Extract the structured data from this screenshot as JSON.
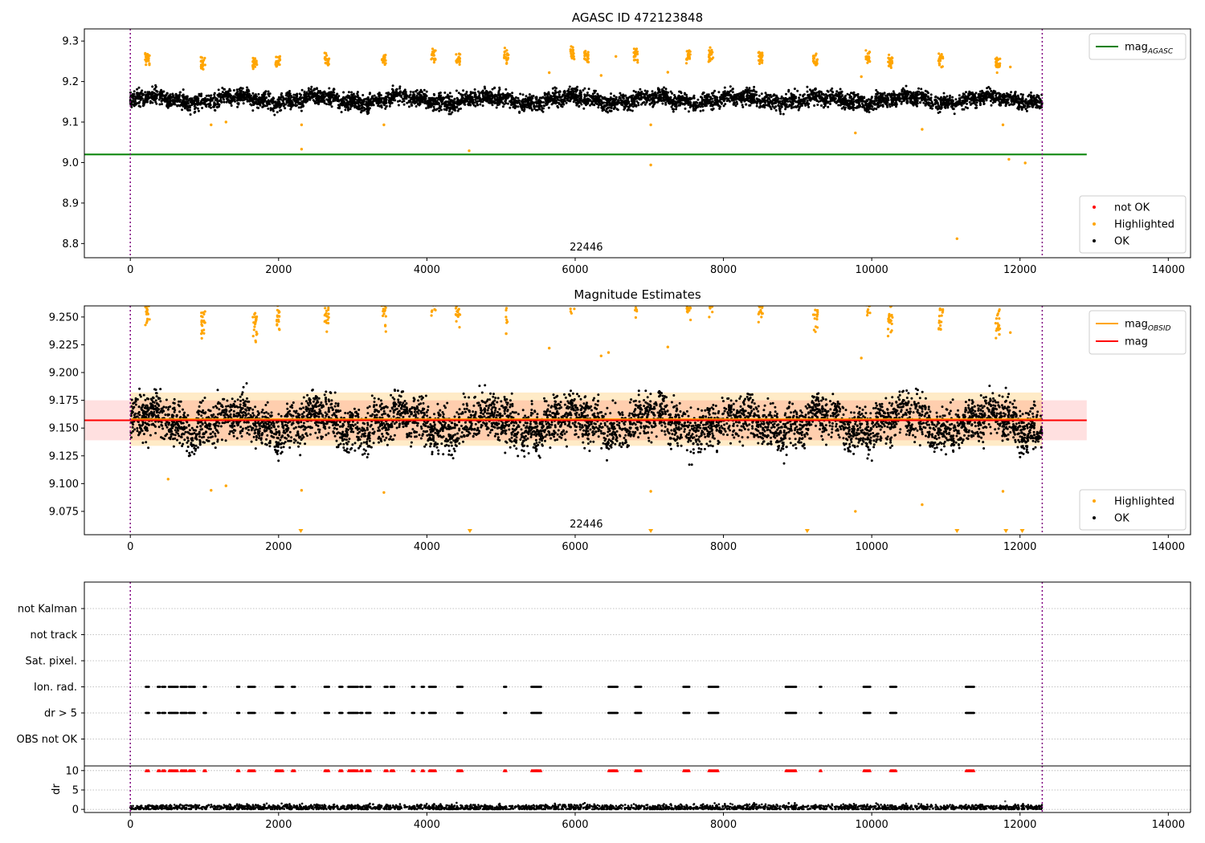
{
  "chart_data": [
    {
      "id": "agasc",
      "type": "scatter",
      "title": "AGASC ID 472123848",
      "xlim": [
        -620,
        14300
      ],
      "ylim": [
        8.765,
        9.33
      ],
      "xticks": [
        0,
        2000,
        4000,
        6000,
        8000,
        10000,
        12000,
        14000
      ],
      "yticks": [
        8.8,
        8.9,
        9.0,
        9.1,
        9.2,
        9.3
      ],
      "ytick_labels": [
        "8.8",
        "8.9",
        "9.0",
        "9.1",
        "9.2",
        "9.3"
      ],
      "annotation": {
        "text": "22446",
        "x": 6150
      },
      "vlines": [
        0,
        12300
      ],
      "hlines": [
        {
          "y": 9.02,
          "x_range": [
            -620,
            12900
          ],
          "color": "#008000",
          "name": "mag",
          "sub": "AGASC"
        }
      ],
      "legend_lines": [
        {
          "label": "mag",
          "sub": "AGASC",
          "color": "#008000"
        }
      ],
      "legend_points": [
        {
          "label": "not OK",
          "color": "#ff0000"
        },
        {
          "label": "Highlighted",
          "color": "#ffa500"
        },
        {
          "label": "OK",
          "color": "#000000"
        }
      ],
      "ok_band": {
        "x_range": [
          0,
          12300
        ],
        "center": 9.155,
        "spread": 0.018,
        "n": 5200
      },
      "highlighted_clusters": [
        [
          230,
          9.255
        ],
        [
          980,
          9.245
        ],
        [
          1680,
          9.245
        ],
        [
          1990,
          9.25
        ],
        [
          2650,
          9.255
        ],
        [
          3420,
          9.255
        ],
        [
          4090,
          9.265
        ],
        [
          4420,
          9.255
        ],
        [
          5070,
          9.265
        ],
        [
          5960,
          9.268
        ],
        [
          6150,
          9.262
        ],
        [
          6820,
          9.265
        ],
        [
          7530,
          9.262
        ],
        [
          7830,
          9.268
        ],
        [
          8500,
          9.26
        ],
        [
          9240,
          9.255
        ],
        [
          9950,
          9.262
        ],
        [
          10250,
          9.25
        ],
        [
          10930,
          9.255
        ],
        [
          11700,
          9.245
        ]
      ],
      "highlighted_points": [
        [
          1090,
          9.093
        ],
        [
          1290,
          9.1
        ],
        [
          2310,
          9.093
        ],
        [
          2310,
          9.033
        ],
        [
          3420,
          9.093
        ],
        [
          4570,
          9.029
        ],
        [
          5650,
          9.222
        ],
        [
          6350,
          9.215
        ],
        [
          6550,
          9.262
        ],
        [
          7020,
          9.093
        ],
        [
          7020,
          8.994
        ],
        [
          7250,
          9.223
        ],
        [
          9780,
          9.073
        ],
        [
          9860,
          9.212
        ],
        [
          10680,
          9.082
        ],
        [
          11150,
          8.812
        ],
        [
          11770,
          9.093
        ],
        [
          11850,
          9.008
        ],
        [
          12070,
          8.999
        ],
        [
          11870,
          9.236
        ]
      ]
    },
    {
      "id": "mag_estimates",
      "type": "scatter",
      "title": "Magnitude Estimates",
      "xlim": [
        -620,
        14300
      ],
      "ylim": [
        9.054,
        9.26
      ],
      "xticks": [
        0,
        2000,
        4000,
        6000,
        8000,
        10000,
        12000,
        14000
      ],
      "yticks": [
        9.075,
        9.1,
        9.125,
        9.15,
        9.175,
        9.2,
        9.225,
        9.25
      ],
      "ytick_labels": [
        "9.075",
        "9.100",
        "9.125",
        "9.150",
        "9.175",
        "9.200",
        "9.225",
        "9.250"
      ],
      "annotation": {
        "text": "22446",
        "x": 6150
      },
      "vlines": [
        0,
        12300
      ],
      "bands": [
        {
          "x_range": [
            0,
            12300
          ],
          "y_range": [
            9.134,
            9.182
          ],
          "color": "#ffa500",
          "opacity": 0.22
        },
        {
          "x_range": [
            -620,
            12900
          ],
          "y_range": [
            9.139,
            9.175
          ],
          "color": "#ff0000",
          "opacity": 0.12
        }
      ],
      "hlines": [
        {
          "y": 9.158,
          "x_range": [
            0,
            12300
          ],
          "color": "#ffa500",
          "name": "mag",
          "sub": "OBSID"
        },
        {
          "y": 9.157,
          "x_range": [
            -620,
            12900
          ],
          "color": "#ff0000",
          "name": "mag",
          "sub": ""
        }
      ],
      "legend_lines": [
        {
          "label": "mag",
          "sub": "OBSID",
          "color": "#ffa500"
        },
        {
          "label": "mag",
          "sub": "",
          "color": "#ff0000"
        }
      ],
      "legend_points": [
        {
          "label": "Highlighted",
          "color": "#ffa500"
        },
        {
          "label": "OK",
          "color": "#000000"
        }
      ],
      "ok_band": {
        "x_range": [
          0,
          12300
        ],
        "center": 9.155,
        "spread": 0.018,
        "n": 5200
      },
      "highlighted_clusters": [
        [
          230,
          9.255
        ],
        [
          980,
          9.245
        ],
        [
          1680,
          9.245
        ],
        [
          1990,
          9.25
        ],
        [
          2650,
          9.255
        ],
        [
          3420,
          9.255
        ],
        [
          4090,
          9.265
        ],
        [
          4420,
          9.255
        ],
        [
          5070,
          9.265
        ],
        [
          5960,
          9.268
        ],
        [
          6820,
          9.265
        ],
        [
          7530,
          9.262
        ],
        [
          7830,
          9.268
        ],
        [
          8500,
          9.26
        ],
        [
          9240,
          9.255
        ],
        [
          9950,
          9.262
        ],
        [
          10250,
          9.25
        ],
        [
          10930,
          9.255
        ],
        [
          11700,
          9.245
        ]
      ],
      "highlighted_points": [
        [
          510,
          9.104
        ],
        [
          1090,
          9.094
        ],
        [
          1290,
          9.098
        ],
        [
          2310,
          9.094
        ],
        [
          3420,
          9.092
        ],
        [
          5070,
          9.235
        ],
        [
          5650,
          9.222
        ],
        [
          6350,
          9.215
        ],
        [
          6450,
          9.218
        ],
        [
          7020,
          9.093
        ],
        [
          7250,
          9.223
        ],
        [
          9780,
          9.075
        ],
        [
          9860,
          9.213
        ],
        [
          10680,
          9.081
        ],
        [
          11770,
          9.093
        ],
        [
          11870,
          9.236
        ]
      ],
      "offscale_low_markers": [
        2300,
        4580,
        7020,
        9130,
        11150,
        11810,
        12030
      ]
    },
    {
      "id": "flags",
      "type": "scatter",
      "xlim": [
        -620,
        14300
      ],
      "categories": [
        "not Kalman",
        "not track",
        "Sat. pixel.",
        "Ion. rad.",
        "dr > 5",
        "OBS not OK"
      ],
      "vlines": [
        0,
        12300
      ],
      "flag_spans": [
        [
          210,
          250
        ],
        [
          370,
          400
        ],
        [
          430,
          470
        ],
        [
          520,
          640
        ],
        [
          680,
          760
        ],
        [
          790,
          870
        ],
        [
          990,
          1020
        ],
        [
          1440,
          1470
        ],
        [
          1590,
          1680
        ],
        [
          1960,
          2060
        ],
        [
          2180,
          2220
        ],
        [
          2620,
          2680
        ],
        [
          2820,
          2860
        ],
        [
          2940,
          3070
        ],
        [
          3100,
          3130
        ],
        [
          3180,
          3240
        ],
        [
          3430,
          3470
        ],
        [
          3510,
          3560
        ],
        [
          3800,
          3830
        ],
        [
          3930,
          3960
        ],
        [
          4030,
          4120
        ],
        [
          4410,
          4480
        ],
        [
          5040,
          5070
        ],
        [
          5410,
          5540
        ],
        [
          6450,
          6570
        ],
        [
          6810,
          6890
        ],
        [
          7460,
          7540
        ],
        [
          7800,
          7930
        ],
        [
          8840,
          8980
        ],
        [
          9300,
          9320
        ],
        [
          9890,
          9980
        ],
        [
          10250,
          10330
        ],
        [
          11270,
          11380
        ]
      ]
    },
    {
      "id": "dr",
      "type": "scatter",
      "ylabel": "dr",
      "xlim": [
        -620,
        14300
      ],
      "ylim": [
        -0.8,
        11.2
      ],
      "xticks": [
        0,
        2000,
        4000,
        6000,
        8000,
        10000,
        12000,
        14000
      ],
      "yticks": [
        0,
        5,
        10
      ],
      "ytick_labels": [
        "0",
        "5",
        "10"
      ],
      "vlines": [
        0,
        12300
      ],
      "dr_band": {
        "x_range": [
          0,
          12300
        ],
        "center": 0.5,
        "spread": 0.4,
        "n": 2500
      },
      "dr_outliers": [
        [
          11800,
          2.1
        ]
      ],
      "capped_value": 10
    }
  ]
}
